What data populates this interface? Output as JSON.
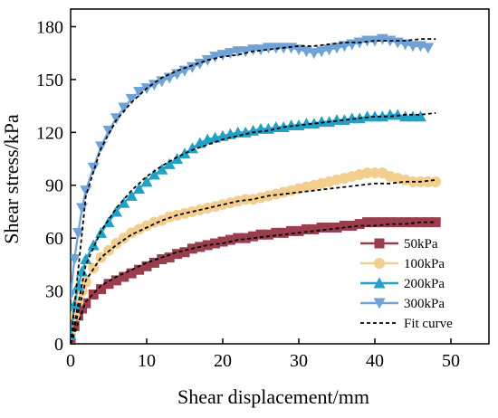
{
  "chart_data": {
    "type": "line",
    "xlabel": "Shear displacement/mm",
    "ylabel": "Shear stress/kPa",
    "xlim": [
      0,
      55
    ],
    "ylim": [
      0,
      190
    ],
    "xticks": [
      0,
      10,
      20,
      30,
      40,
      50
    ],
    "yticks": [
      0,
      30,
      60,
      90,
      120,
      150,
      180
    ],
    "legend_position": "bottom-right",
    "grid": false,
    "series": [
      {
        "name": "50kPa",
        "color": "#9a3e4e",
        "marker": "square",
        "x": [
          0,
          0.5,
          1,
          1.5,
          2,
          3,
          4,
          5,
          6,
          7,
          8,
          9,
          10,
          11,
          12,
          13,
          14,
          15,
          16,
          17,
          18,
          19,
          20,
          21,
          22,
          23,
          24,
          25,
          26,
          27,
          28,
          29,
          30,
          31,
          32,
          33,
          34,
          35,
          36,
          37,
          38,
          39,
          40,
          41,
          42,
          43,
          44,
          45,
          46,
          47,
          48
        ],
        "y": [
          3,
          10,
          16,
          20,
          23,
          28,
          31,
          34,
          36,
          38,
          40,
          42,
          44,
          46,
          48,
          49,
          51,
          52,
          54,
          55,
          56,
          57,
          58,
          59,
          60,
          60,
          61,
          62,
          62,
          63,
          63,
          64,
          64,
          65,
          65,
          66,
          66,
          66,
          67,
          67,
          68,
          69,
          69,
          69,
          69,
          69,
          69,
          69,
          69,
          69,
          69
        ]
      },
      {
        "name": "100kPa",
        "color": "#f2cf8e",
        "marker": "circle",
        "x": [
          0,
          0.5,
          1,
          1.5,
          2,
          3,
          4,
          5,
          6,
          7,
          8,
          9,
          10,
          11,
          12,
          13,
          14,
          15,
          16,
          17,
          18,
          19,
          20,
          21,
          22,
          23,
          24,
          25,
          26,
          27,
          28,
          29,
          30,
          31,
          32,
          33,
          34,
          35,
          36,
          37,
          38,
          39,
          40,
          41,
          42,
          43,
          44,
          45,
          46,
          47,
          48
        ],
        "y": [
          5,
          16,
          24,
          30,
          35,
          43,
          49,
          53,
          57,
          60,
          63,
          65,
          67,
          69,
          70,
          72,
          73,
          74,
          75,
          76,
          77,
          78,
          79,
          80,
          81,
          82,
          82,
          83,
          84,
          85,
          86,
          87,
          88,
          89,
          90,
          91,
          92,
          93,
          94,
          95,
          96,
          97,
          97,
          97,
          95,
          94,
          93,
          92,
          92,
          92,
          92
        ]
      },
      {
        "name": "200kPa",
        "color": "#22a0c6",
        "marker": "triangle-up",
        "x": [
          0,
          0.5,
          1,
          1.5,
          2,
          3,
          4,
          5,
          6,
          7,
          8,
          9,
          10,
          11,
          12,
          13,
          14,
          15,
          16,
          17,
          18,
          19,
          20,
          21,
          22,
          23,
          24,
          25,
          26,
          27,
          28,
          29,
          30,
          31,
          32,
          33,
          34,
          35,
          36,
          37,
          38,
          39,
          40,
          41,
          42,
          43,
          44,
          45,
          46
        ],
        "y": [
          5,
          22,
          33,
          41,
          48,
          56,
          63,
          69,
          75,
          80,
          84,
          88,
          92,
          96,
          99,
          102,
          105,
          108,
          111,
          114,
          116,
          117,
          118,
          119,
          120,
          120,
          121,
          122,
          122,
          123,
          123,
          124,
          124,
          125,
          125,
          126,
          126,
          127,
          127,
          128,
          128,
          129,
          129,
          129,
          130,
          130,
          129,
          129,
          129
        ]
      },
      {
        "name": "300kPa",
        "color": "#6fa3d8",
        "marker": "triangle-down",
        "x": [
          0,
          0.5,
          1,
          1.5,
          2,
          3,
          4,
          5,
          6,
          7,
          8,
          9,
          10,
          11,
          12,
          13,
          14,
          15,
          16,
          17,
          18,
          19,
          20,
          21,
          22,
          23,
          24,
          25,
          26,
          27,
          28,
          29,
          30,
          31,
          32,
          33,
          34,
          35,
          36,
          37,
          38,
          39,
          40,
          41,
          42,
          43,
          44,
          45,
          46,
          47
        ],
        "y": [
          28,
          48,
          63,
          77,
          87,
          100,
          112,
          121,
          128,
          134,
          139,
          143,
          145,
          147,
          149,
          151,
          153,
          155,
          157,
          159,
          161,
          163,
          164,
          165,
          166,
          166,
          167,
          167,
          168,
          168,
          168,
          168,
          167,
          166,
          165,
          166,
          167,
          168,
          169,
          170,
          171,
          172,
          172,
          173,
          172,
          171,
          170,
          169,
          169,
          168
        ]
      },
      {
        "name": "Fit curve",
        "color": "#000000",
        "style": "dashed",
        "fits": [
          {
            "x": [
              0,
              2,
              4,
              6,
              8,
              10,
              12,
              14,
              16,
              18,
              20,
              22,
              24,
              26,
              28,
              30,
              32,
              34,
              36,
              38,
              40,
              42,
              44,
              46,
              48
            ],
            "y": [
              0,
              24,
              33,
              38,
              42,
              46,
              49,
              52,
              54,
              56,
              57,
              59,
              60,
              61,
              62,
              63,
              64,
              65,
              66,
              67,
              67,
              68,
              68,
              69,
              69
            ]
          },
          {
            "x": [
              0,
              2,
              4,
              6,
              8,
              10,
              12,
              14,
              16,
              18,
              20,
              22,
              24,
              26,
              28,
              30,
              32,
              34,
              36,
              38,
              40,
              42,
              44,
              46,
              48
            ],
            "y": [
              0,
              36,
              49,
              56,
              62,
              66,
              70,
              73,
              75,
              77,
              79,
              81,
              82,
              84,
              85,
              86,
              87,
              88,
              89,
              90,
              91,
              91,
              92,
              92,
              93
            ]
          },
          {
            "x": [
              0,
              2,
              4,
              6,
              8,
              10,
              12,
              14,
              16,
              18,
              20,
              22,
              24,
              26,
              28,
              30,
              32,
              34,
              36,
              38,
              40,
              42,
              44,
              46,
              48
            ],
            "y": [
              0,
              45,
              64,
              77,
              87,
              95,
              101,
              106,
              110,
              113,
              116,
              118,
              120,
              121,
              123,
              124,
              125,
              126,
              127,
              128,
              129,
              129,
              130,
              130,
              131
            ]
          },
          {
            "x": [
              0,
              2,
              4,
              6,
              8,
              10,
              12,
              14,
              16,
              18,
              20,
              22,
              24,
              26,
              28,
              30,
              32,
              34,
              36,
              38,
              40,
              42,
              44,
              46,
              48
            ],
            "y": [
              0,
              84,
              111,
              127,
              137,
              145,
              151,
              155,
              158,
              161,
              163,
              164,
              166,
              167,
              168,
              169,
              169,
              170,
              171,
              171,
              172,
              172,
              172,
              173,
              173
            ]
          }
        ]
      }
    ]
  }
}
